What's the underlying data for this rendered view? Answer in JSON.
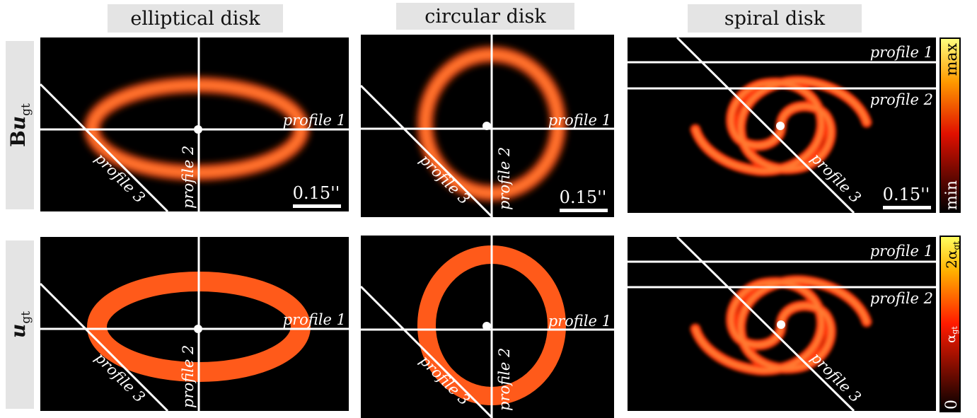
{
  "headers": {
    "col1": "elliptical disk",
    "col2": "circular disk",
    "col3": "spiral disk"
  },
  "row_labels": {
    "row1_prefix": "B",
    "row1_symbol": "u",
    "row1_sub": "gt",
    "row2_symbol": "u",
    "row2_sub": "gt"
  },
  "profiles": {
    "p1": "profile 1",
    "p2": "profile 2",
    "p3": "profile 3"
  },
  "scalebar": "0.15''",
  "colorbar_top": {
    "max": "max",
    "min": "min"
  },
  "colorbar_bottom": {
    "max": "2α",
    "mid": "α",
    "min": "0",
    "sub": "gt"
  },
  "colors": {
    "background": "#000000",
    "ring": "#ff5a1a",
    "ring_core": "#ff6a2a",
    "line": "#ffffff",
    "label_bg": "#e4e4e4"
  }
}
